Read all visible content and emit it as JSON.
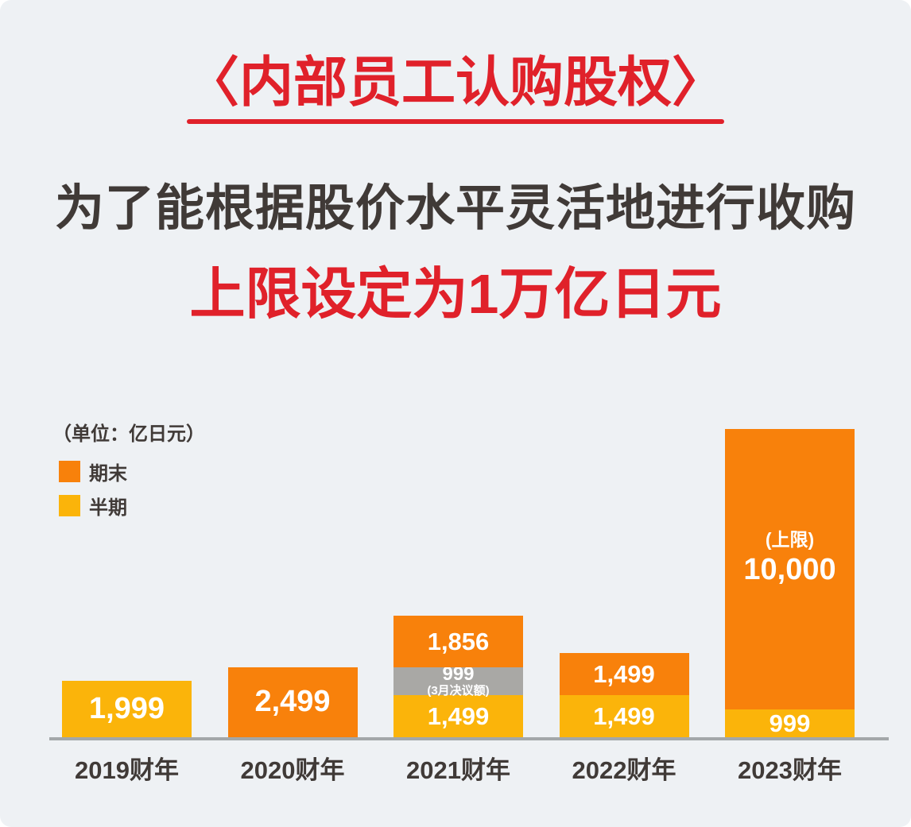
{
  "page": {
    "title": "〈内部员工认购股权〉",
    "subtitle_line1": "为了能根据股价水平灵活地进行收购",
    "subtitle_line2": "上限设定为1万亿日元",
    "colors": {
      "background": "#eef1f4",
      "accent_red": "#e0212a",
      "text_dark": "#403a37",
      "axis_gray": "#a3a7a9"
    }
  },
  "chart_data": {
    "type": "bar",
    "stacked": true,
    "title": "",
    "unit_label": "（单位：亿日元）",
    "xlabel": "",
    "ylabel": "",
    "ylim": [
      0,
      11000
    ],
    "grid": false,
    "legend_position": "top-left",
    "legend": [
      {
        "name": "期末",
        "color": "#f8810b"
      },
      {
        "name": "半期",
        "color": "#fbb40a"
      }
    ],
    "colors": {
      "orange": "#f8810b",
      "yellow": "#fbb40a",
      "gray": "#a9a8a5"
    },
    "categories": [
      "2019财年",
      "2020财年",
      "2021财年",
      "2022财年",
      "2023财年"
    ],
    "bars": [
      {
        "category": "2019财年",
        "segments": [
          {
            "series": "半期",
            "value": 1999,
            "label": "1,999",
            "color": "yellow",
            "label_size": "lg"
          }
        ]
      },
      {
        "category": "2020财年",
        "segments": [
          {
            "series": "期末",
            "value": 2499,
            "label": "2,499",
            "color": "orange",
            "label_size": "lg"
          }
        ]
      },
      {
        "category": "2021财年",
        "segments": [
          {
            "series": "半期",
            "value": 1499,
            "label": "1,499",
            "color": "yellow",
            "label_size": "md"
          },
          {
            "series": "3月决议额",
            "value": 999,
            "label": "999",
            "sublabel": "(3月决议额)",
            "sublabel_pos": "below",
            "color": "gray",
            "label_size": "sm"
          },
          {
            "series": "期末",
            "value": 1856,
            "label": "1,856",
            "color": "orange",
            "label_size": "md"
          }
        ]
      },
      {
        "category": "2022财年",
        "segments": [
          {
            "series": "半期",
            "value": 1499,
            "label": "1,499",
            "color": "yellow",
            "label_size": "md"
          },
          {
            "series": "期末",
            "value": 1499,
            "label": "1,499",
            "color": "orange",
            "label_size": "md"
          }
        ]
      },
      {
        "category": "2023财年",
        "segments": [
          {
            "series": "半期",
            "value": 999,
            "label": "999",
            "color": "yellow",
            "label_size": "md"
          },
          {
            "series": "期末",
            "value": 10000,
            "label": "10,000",
            "sublabel": "(上限)",
            "sublabel_pos": "above",
            "color": "orange",
            "label_size": "lg"
          }
        ]
      }
    ]
  }
}
